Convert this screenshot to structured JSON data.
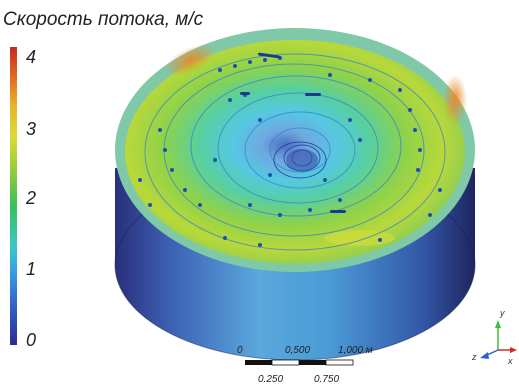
{
  "legend": {
    "title": "Скорость потока,  м/с",
    "ticks": [
      "4",
      "3",
      "2",
      "1",
      "0"
    ],
    "gradient": [
      "#2a2f8c",
      "#2f5fc4",
      "#3aa0e0",
      "#39c7c9",
      "#3cbf55",
      "#9fce3a",
      "#d9dc33",
      "#e8b52c",
      "#e06a22",
      "#c92a1c"
    ]
  },
  "scale_bar": {
    "top_labels": [
      "0",
      "0,500",
      "1,000 м"
    ],
    "bottom_labels": [
      "0.250",
      "0.750"
    ]
  },
  "axes": {
    "labels": [
      "y",
      "z",
      "x"
    ]
  }
}
